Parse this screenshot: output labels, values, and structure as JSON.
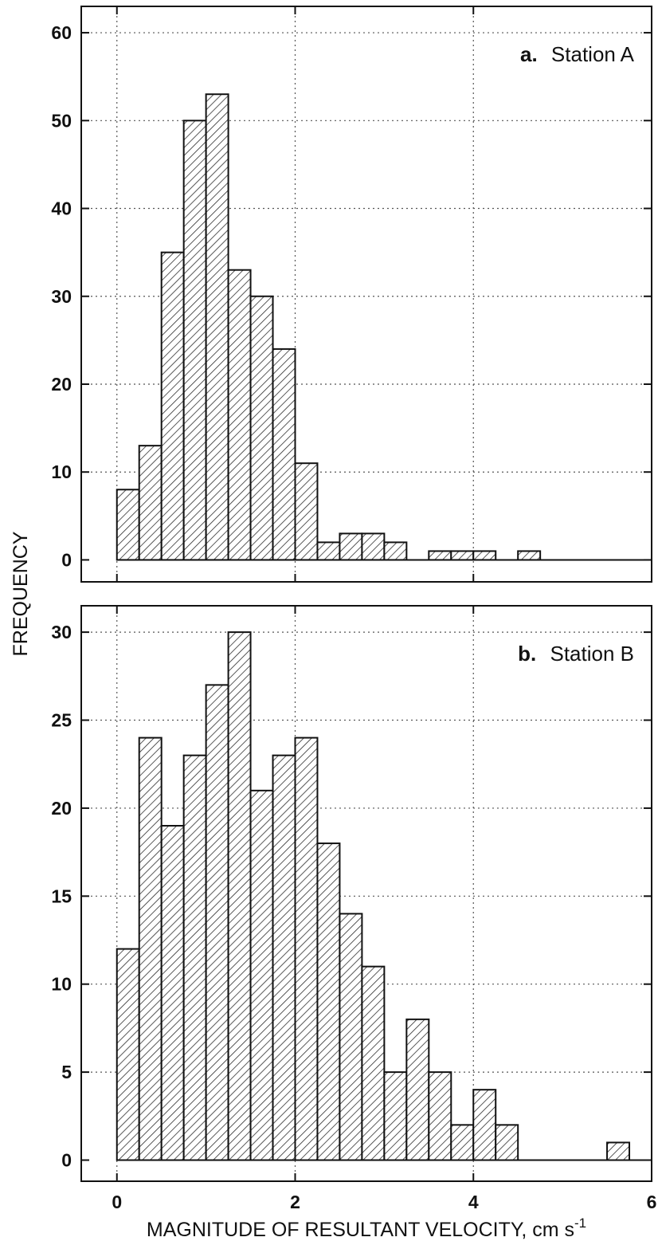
{
  "chart_data": [
    {
      "type": "bar",
      "panel_label": "a.",
      "title": "Station A",
      "xlabel": "MAGNITUDE OF RESULTANT VELOCITY, cm s",
      "xlabel_superscript": "-1",
      "ylabel": "FREQUENCY",
      "bin_width": 0.25,
      "x_start": 0,
      "values": [
        8,
        13,
        35,
        50,
        53,
        33,
        30,
        24,
        11,
        2,
        3,
        3,
        2,
        0,
        1,
        1,
        1,
        0,
        1
      ],
      "xlim": [
        -0.4,
        6
      ],
      "ylim": [
        -2.5,
        63
      ],
      "yticks": [
        0,
        10,
        20,
        30,
        40,
        50,
        60
      ],
      "xticks": [
        0,
        2,
        4,
        6
      ],
      "grid": true
    },
    {
      "type": "bar",
      "panel_label": "b.",
      "title": "Station B",
      "bin_width": 0.25,
      "x_start": 0,
      "values": [
        12,
        24,
        19,
        23,
        27,
        30,
        21,
        23,
        24,
        18,
        14,
        11,
        5,
        8,
        5,
        2,
        4,
        2,
        0,
        0,
        0,
        0,
        1
      ],
      "xlim": [
        -0.4,
        6
      ],
      "ylim": [
        -1.2,
        31.5
      ],
      "yticks": [
        0,
        5,
        10,
        15,
        20,
        25,
        30
      ],
      "xticks": [
        0,
        2,
        4,
        6
      ],
      "grid": true
    }
  ]
}
